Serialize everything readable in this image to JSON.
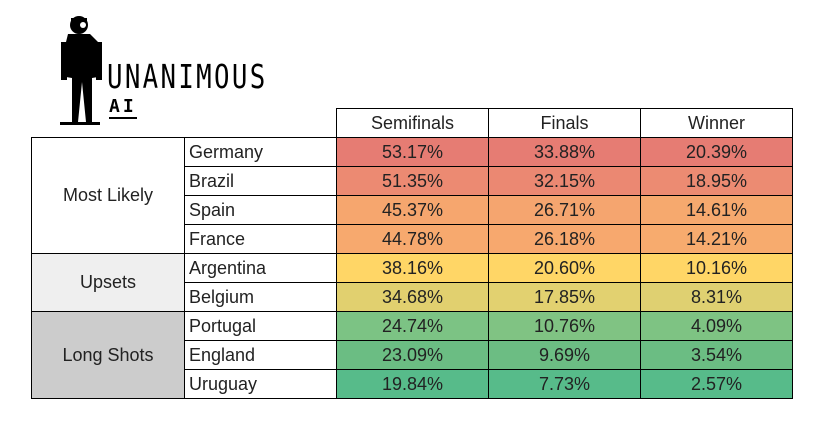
{
  "logo": {
    "name": "UNANIMOUS",
    "sub": "AI",
    "figure_icon": "diver-silhouette-icon"
  },
  "table": {
    "headers": [
      "Semifinals",
      "Finals",
      "Winner"
    ],
    "groups": [
      {
        "label": "Most Likely",
        "color": "#ffffff",
        "rows": [
          {
            "country": "Germany",
            "values": [
              "53.17%",
              "33.88%",
              "20.39%"
            ],
            "colors": [
              "#e67c73",
              "#e67c73",
              "#e67c73"
            ]
          },
          {
            "country": "Brazil",
            "values": [
              "51.35%",
              "32.15%",
              "18.95%"
            ],
            "colors": [
              "#ec8a72",
              "#eb8872",
              "#ec8b72"
            ]
          },
          {
            "country": "Spain",
            "values": [
              "45.37%",
              "26.71%",
              "14.61%"
            ],
            "colors": [
              "#f6a66e",
              "#f5a56f",
              "#f6a96e"
            ]
          },
          {
            "country": "France",
            "values": [
              "44.78%",
              "26.18%",
              "14.21%"
            ],
            "colors": [
              "#f7a96e",
              "#f7a86e",
              "#f7ab6e"
            ]
          }
        ]
      },
      {
        "label": "Upsets",
        "color": "#efefef",
        "rows": [
          {
            "country": "Argentina",
            "values": [
              "38.16%",
              "20.60%",
              "10.16%"
            ],
            "colors": [
              "#ffd666",
              "#ffd666",
              "#ffd666"
            ]
          },
          {
            "country": "Belgium",
            "values": [
              "34.68%",
              "17.85%",
              "8.31%"
            ],
            "colors": [
              "#e1d06f",
              "#e2d170",
              "#dfd071"
            ]
          }
        ]
      },
      {
        "label": "Long Shots",
        "color": "#cccccc",
        "rows": [
          {
            "country": "Portugal",
            "values": [
              "24.74%",
              "10.76%",
              "4.09%"
            ],
            "colors": [
              "#7cc384",
              "#80c383",
              "#7ec383"
            ]
          },
          {
            "country": "England",
            "values": [
              "23.09%",
              "9.69%",
              "3.54%"
            ],
            "colors": [
              "#6bbd83",
              "#6cbd83",
              "#6bbd83"
            ]
          },
          {
            "country": "Uruguay",
            "values": [
              "19.84%",
              "7.73%",
              "2.57%"
            ],
            "colors": [
              "#57bb8a",
              "#57bb8a",
              "#57bb8a"
            ]
          }
        ]
      }
    ]
  }
}
